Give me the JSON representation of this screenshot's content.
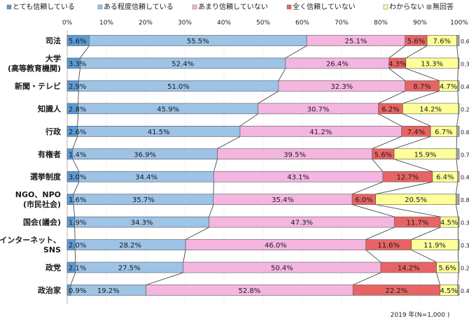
{
  "chart_data": {
    "type": "bar",
    "orientation": "horizontal-stacked-100",
    "legend": [
      {
        "name": "とても信頼している",
        "color": "#5b9bd5"
      },
      {
        "name": "ある程度信頼している",
        "color": "#9dc3e6"
      },
      {
        "name": "あまり信頼していない",
        "color": "#f4b6e0"
      },
      {
        "name": "全く信頼していない",
        "color": "#e86464"
      },
      {
        "name": "わからない",
        "color": "#ffff99"
      },
      {
        "name": "無回答",
        "color": "#a6a6a6"
      }
    ],
    "xticks": [
      "0%",
      "10%",
      "20%",
      "30%",
      "40%",
      "50%",
      "60%",
      "70%",
      "80%",
      "90%",
      "100%"
    ],
    "xlim": [
      0,
      100
    ],
    "categories": [
      [
        "司法"
      ],
      [
        "大学",
        "(高等教育機関)"
      ],
      [
        "新聞・テレビ"
      ],
      [
        "知識人"
      ],
      [
        "行政"
      ],
      [
        "有権者"
      ],
      [
        "選挙制度"
      ],
      [
        "NGO、NPO",
        "(市民社会)"
      ],
      [
        "国会(議会)"
      ],
      [
        "インターネット、",
        "SNS"
      ],
      [
        "政党"
      ],
      [
        "政治家"
      ]
    ],
    "values": [
      [
        5.6,
        55.5,
        25.1,
        5.6,
        7.6,
        0.6
      ],
      [
        3.3,
        52.4,
        26.4,
        4.3,
        13.3,
        0.3
      ],
      [
        2.9,
        51.0,
        32.3,
        8.7,
        4.7,
        0.4
      ],
      [
        2.8,
        45.9,
        30.7,
        6.2,
        14.2,
        0.2
      ],
      [
        2.6,
        41.5,
        41.2,
        7.4,
        6.7,
        0.6
      ],
      [
        1.4,
        36.9,
        39.5,
        5.6,
        15.9,
        0.7
      ],
      [
        3.0,
        34.4,
        43.1,
        12.7,
        6.4,
        0.4
      ],
      [
        1.6,
        35.7,
        35.4,
        6.0,
        20.5,
        0.8
      ],
      [
        1.9,
        34.3,
        47.3,
        11.7,
        4.5,
        0.3
      ],
      [
        2.0,
        28.2,
        46.0,
        11.6,
        11.9,
        0.3
      ],
      [
        2.1,
        27.5,
        50.4,
        14.2,
        5.6,
        0.2
      ],
      [
        0.9,
        19.2,
        52.8,
        22.2,
        4.5,
        0.4
      ]
    ],
    "labels": [
      [
        "5.6%",
        "55.5%",
        "25.1%",
        "5.6%",
        "7.6%",
        "0.6%"
      ],
      [
        "3.3%",
        "52.4%",
        "26.4%",
        "4.3%",
        "13.3%",
        "0.3%"
      ],
      [
        "2.9%",
        "51.0%",
        "32.3%",
        "8.7%",
        "4.7%",
        "0.4%"
      ],
      [
        "2.8%",
        "45.9%",
        "30.7%",
        "6.2%",
        "14.2%",
        "0.2%"
      ],
      [
        "2.6%",
        "41.5%",
        "41.2%",
        "7.4%",
        "6.7%",
        "0.6%"
      ],
      [
        "1.4%",
        "36.9%",
        "39.5%",
        "5.6%",
        "15.9%",
        "0.7%"
      ],
      [
        "3.0%",
        "34.4%",
        "43.1%",
        "12.7%",
        "6.4%",
        "0.4%"
      ],
      [
        "1.6%",
        "35.7%",
        "35.4%",
        "6.0%",
        "20.5%",
        "0.8%"
      ],
      [
        "1.9%",
        "34.3%",
        "47.3%",
        "11.7%",
        "4.5%",
        "0.3%"
      ],
      [
        "2.0%",
        "28.2%",
        "46.0%",
        "11.6%",
        "11.9%",
        "0.3%"
      ],
      [
        "2.1%",
        "27.5%",
        "50.4%",
        "14.2%",
        "5.6%",
        "0.2%"
      ],
      [
        "0.9%",
        "19.2%",
        "52.8%",
        "22.2%",
        "4.5%",
        "0.4%"
      ]
    ],
    "note": "2019 年(N=1,000 )"
  }
}
